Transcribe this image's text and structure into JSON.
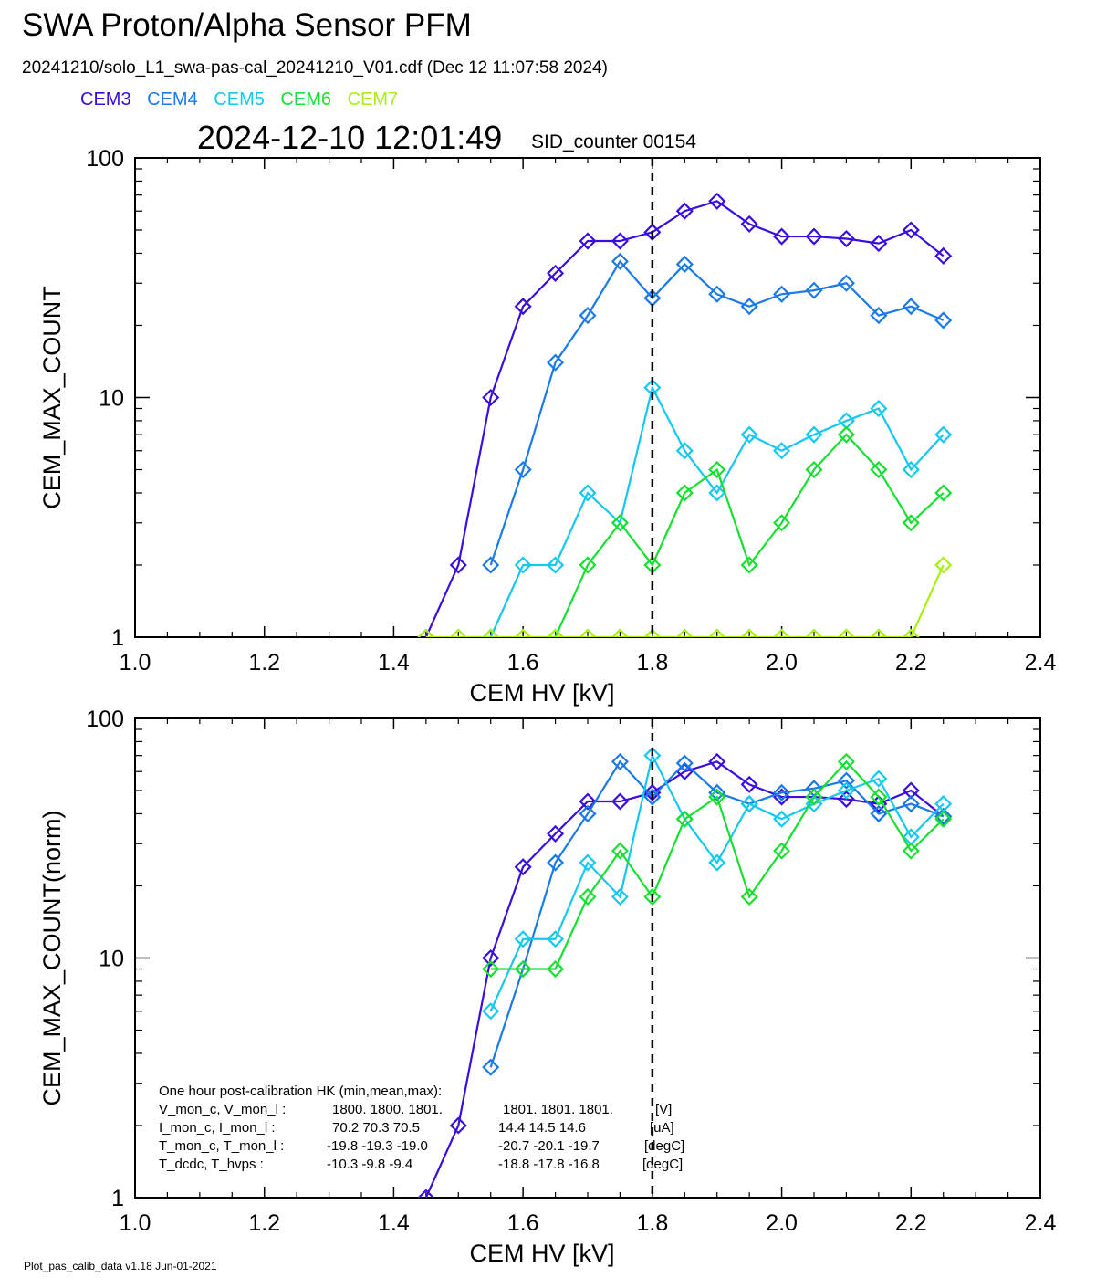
{
  "header": {
    "title": "SWA Proton/Alpha Sensor PFM",
    "subtitle": "20241210/solo_L1_swa-pas-cal_20241210_V01.cdf  (Dec 12 11:07:58 2024)",
    "timestamp": "2024-12-10 12:01:49",
    "sid_counter": "SID_counter 00154"
  },
  "legend": [
    {
      "name": "CEM3",
      "color": "#3a0ee0"
    },
    {
      "name": "CEM4",
      "color": "#1a7ae8"
    },
    {
      "name": "CEM5",
      "color": "#14c8ee"
    },
    {
      "name": "CEM6",
      "color": "#16e030"
    },
    {
      "name": "CEM7",
      "color": "#a8f010"
    }
  ],
  "footer": "Plot_pas_calib_data v1.18 Jun-01-2021",
  "hk_box": {
    "heading": "One hour post-calibration HK (min,mean,max):",
    "rows": [
      {
        "label": "V_mon_c, V_mon_l :",
        "values_c": "1800.  1800.  1801.",
        "values_l": "1801.  1801.  1801.",
        "unit": "[V]"
      },
      {
        "label": "I_mon_c,  I_mon_l :",
        "values_c": "70.2   70.3   70.5",
        "values_l": "14.4   14.5   14.6",
        "unit": "[uA]"
      },
      {
        "label": "T_mon_c, T_mon_l :",
        "values_c": "-19.8  -19.3  -19.0",
        "values_l": "-20.7  -20.1  -19.7",
        "unit": "[degC]"
      },
      {
        "label": "T_dcdc,    T_hvps :",
        "values_c": "-10.3   -9.8   -9.4",
        "values_l": "-18.8  -17.8  -16.8",
        "unit": "[degC]"
      }
    ]
  },
  "chart_data": [
    {
      "type": "line",
      "xlabel": "CEM HV [kV]",
      "ylabel": "CEM_MAX_COUNT",
      "xlim": [
        1.0,
        2.4
      ],
      "ylim": [
        1,
        100
      ],
      "yscale": "log",
      "x_ticks": [
        "1.0",
        "1.2",
        "1.4",
        "1.6",
        "1.8",
        "2.0",
        "2.2",
        "2.4"
      ],
      "y_ticks": [
        "1",
        "10",
        "100"
      ],
      "vline_x": 1.8,
      "series": [
        {
          "name": "CEM3",
          "color": "#3a0ee0",
          "x": [
            1.45,
            1.5,
            1.55,
            1.6,
            1.65,
            1.7,
            1.75,
            1.8,
            1.85,
            1.9,
            1.95,
            2.0,
            2.05,
            2.1,
            2.15,
            2.2,
            2.25
          ],
          "y": [
            1,
            2,
            10,
            24,
            33,
            45,
            45,
            49,
            60,
            66,
            53,
            47,
            47,
            46,
            44,
            50,
            39
          ]
        },
        {
          "name": "CEM4",
          "color": "#1a7ae8",
          "x": [
            1.55,
            1.6,
            1.65,
            1.7,
            1.75,
            1.8,
            1.85,
            1.9,
            1.95,
            2.0,
            2.05,
            2.1,
            2.15,
            2.2,
            2.25
          ],
          "y": [
            2,
            5,
            14,
            22,
            37,
            26,
            36,
            27,
            24,
            27,
            28,
            30,
            22,
            24,
            21
          ]
        },
        {
          "name": "CEM5",
          "color": "#14c8ee",
          "x": [
            1.55,
            1.6,
            1.65,
            1.7,
            1.75,
            1.8,
            1.85,
            1.9,
            1.95,
            2.0,
            2.05,
            2.1,
            2.15,
            2.2,
            2.25
          ],
          "y": [
            1,
            2,
            2,
            4,
            3,
            11,
            6,
            4,
            7,
            6,
            7,
            8,
            9,
            5,
            7
          ]
        },
        {
          "name": "CEM6",
          "color": "#16e030",
          "x": [
            1.65,
            1.7,
            1.75,
            1.8,
            1.85,
            1.9,
            1.95,
            2.0,
            2.05,
            2.1,
            2.15,
            2.2,
            2.25
          ],
          "y": [
            1,
            2,
            3,
            2,
            4,
            5,
            2,
            3,
            5,
            7,
            5,
            3,
            4
          ]
        },
        {
          "name": "CEM7",
          "color": "#a8f010",
          "x": [
            1.45,
            1.5,
            1.55,
            1.6,
            1.65,
            1.7,
            1.75,
            1.8,
            1.85,
            1.9,
            1.95,
            2.0,
            2.05,
            2.1,
            2.15,
            2.2,
            2.25
          ],
          "y": [
            1,
            1,
            1,
            1,
            1,
            1,
            1,
            1,
            1,
            1,
            1,
            1,
            1,
            1,
            1,
            1,
            2
          ]
        }
      ]
    },
    {
      "type": "line",
      "xlabel": "CEM HV [kV]",
      "ylabel": "CEM_MAX_COUNT(norm)",
      "xlim": [
        1.0,
        2.4
      ],
      "ylim": [
        1,
        100
      ],
      "yscale": "log",
      "x_ticks": [
        "1.0",
        "1.2",
        "1.4",
        "1.6",
        "1.8",
        "2.0",
        "2.2",
        "2.4"
      ],
      "y_ticks": [
        "1",
        "10",
        "100"
      ],
      "vline_x": 1.8,
      "series": [
        {
          "name": "CEM3",
          "color": "#3a0ee0",
          "x": [
            1.45,
            1.5,
            1.55,
            1.6,
            1.65,
            1.7,
            1.75,
            1.8,
            1.85,
            1.9,
            1.95,
            2.0,
            2.05,
            2.1,
            2.15,
            2.2,
            2.25
          ],
          "y": [
            1,
            2,
            10,
            24,
            33,
            45,
            45,
            49,
            60,
            66,
            53,
            47,
            47,
            46,
            44,
            50,
            39
          ]
        },
        {
          "name": "CEM4",
          "color": "#1a7ae8",
          "x": [
            1.55,
            1.6,
            1.65,
            1.7,
            1.75,
            1.8,
            1.85,
            1.9,
            1.95,
            2.0,
            2.05,
            2.1,
            2.15,
            2.2,
            2.25
          ],
          "y": [
            3.5,
            9,
            25,
            40,
            66,
            47,
            65,
            49,
            44,
            49,
            51,
            55,
            40,
            44,
            39
          ]
        },
        {
          "name": "CEM5",
          "color": "#14c8ee",
          "x": [
            1.55,
            1.6,
            1.65,
            1.7,
            1.75,
            1.8,
            1.85,
            1.9,
            1.95,
            2.0,
            2.05,
            2.1,
            2.15,
            2.2,
            2.25
          ],
          "y": [
            6,
            12,
            12,
            25,
            18,
            70,
            38,
            25,
            44,
            38,
            44,
            50,
            56,
            32,
            44
          ]
        },
        {
          "name": "CEM6",
          "color": "#16e030",
          "x": [
            1.55,
            1.6,
            1.65,
            1.7,
            1.75,
            1.8,
            1.85,
            1.9,
            1.95,
            2.0,
            2.05,
            2.1,
            2.15,
            2.2,
            2.25
          ],
          "y": [
            9,
            9,
            9,
            18,
            28,
            18,
            38,
            47,
            18,
            28,
            47,
            66,
            47,
            28,
            38
          ]
        }
      ]
    }
  ]
}
